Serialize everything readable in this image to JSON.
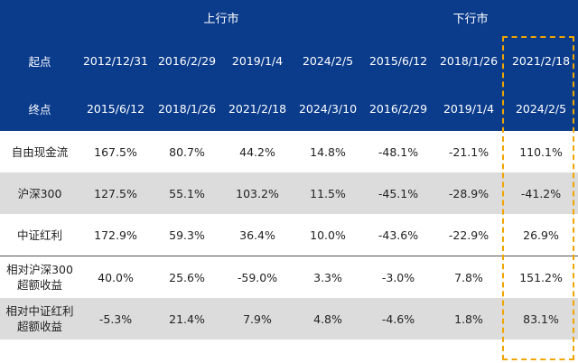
{
  "header": {
    "group_up": "上行市",
    "group_down": "下行市",
    "start_label": "起点",
    "end_label": "终点",
    "starts": [
      "2012/12/31",
      "2016/2/29",
      "2019/1/4",
      "2024/2/5",
      "2015/6/12",
      "2018/1/26",
      "2021/2/18"
    ],
    "ends": [
      "2015/6/12",
      "2018/1/26",
      "2021/2/18",
      "2024/3/10",
      "2016/2/29",
      "2019/1/4",
      "2024/2/5"
    ]
  },
  "rows": [
    {
      "label_1": "自由现金流",
      "label_2": "",
      "values": [
        "167.5%",
        "80.7%",
        "44.2%",
        "14.8%",
        "-48.1%",
        "-21.1%",
        "110.1%"
      ]
    },
    {
      "label_1": "沪深300",
      "label_2": "",
      "values": [
        "127.5%",
        "55.1%",
        "103.2%",
        "11.5%",
        "-45.1%",
        "-28.9%",
        "-41.2%"
      ]
    },
    {
      "label_1": "中证红利",
      "label_2": "",
      "values": [
        "172.9%",
        "59.3%",
        "36.4%",
        "10.0%",
        "-43.6%",
        "-22.9%",
        "26.9%"
      ]
    },
    {
      "label_1": "相对沪深300",
      "label_2": "超额收益",
      "values": [
        "40.0%",
        "25.6%",
        "-59.0%",
        "3.3%",
        "-3.0%",
        "7.8%",
        "151.2%"
      ]
    },
    {
      "label_1": "相对中证红利",
      "label_2": "超额收益",
      "values": [
        "-5.3%",
        "21.4%",
        "7.9%",
        "4.8%",
        "-4.6%",
        "1.8%",
        "83.1%"
      ]
    }
  ],
  "colors": {
    "header_bg": "#0b3c8c",
    "stripe": "#dcdcdc",
    "highlight_box": "#f0a500"
  }
}
